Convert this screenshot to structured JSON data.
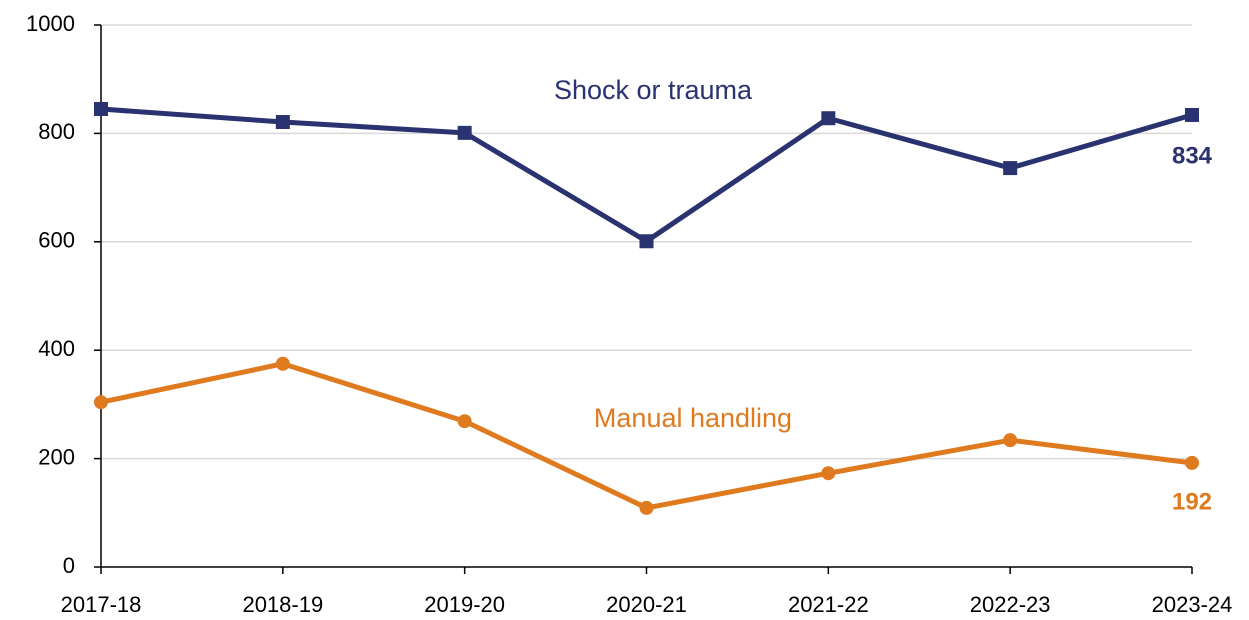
{
  "chart_data": {
    "type": "line",
    "categories": [
      "2017-18",
      "2018-19",
      "2019-20",
      "2020-21",
      "2021-22",
      "2022-23",
      "2023-24"
    ],
    "series": [
      {
        "name": "Shock or trauma",
        "color": "#2b3270",
        "marker": "square",
        "values": [
          845,
          821,
          801,
          601,
          828,
          736,
          834
        ]
      },
      {
        "name": "Manual handling",
        "color": "#e07a1f",
        "marker": "circle",
        "values": [
          304,
          375,
          269,
          109,
          173,
          234,
          192
        ]
      }
    ],
    "ylim": [
      0,
      1000
    ],
    "yticks": [
      0,
      200,
      400,
      600,
      800,
      1000
    ],
    "grid": true
  }
}
